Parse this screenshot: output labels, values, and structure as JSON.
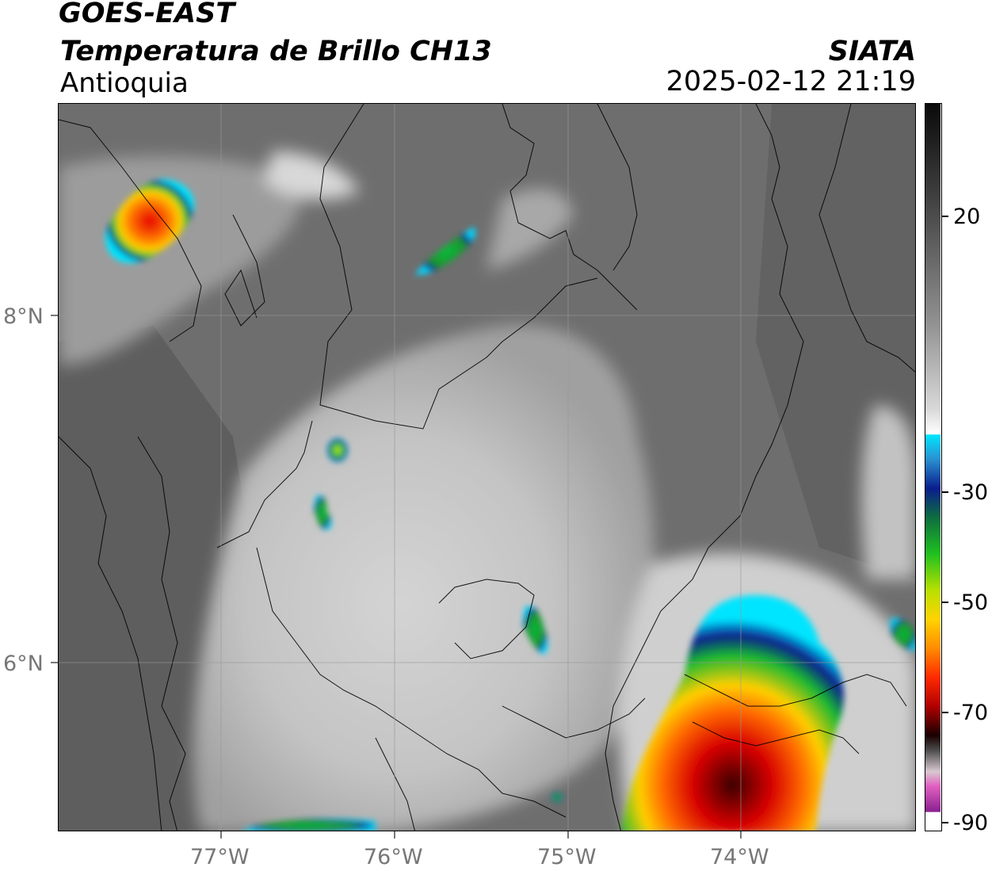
{
  "header": {
    "satellite": "GOES-EAST",
    "product": "Temperatura de Brillo CH13",
    "region": "Antioquia",
    "organization": "SIATA",
    "datetime": "2025-02-12 21:19"
  },
  "map": {
    "lat_labels": [
      "8°N",
      "6°N"
    ],
    "lon_labels": [
      "77°W",
      "76°W",
      "75°W",
      "74°W"
    ],
    "gridlines": true
  },
  "colorbar": {
    "ticks": [
      "20",
      "-30",
      "-50",
      "-70",
      "-90"
    ],
    "colors": {
      "warm": "#1a1a1a",
      "mid": "#bfbfbf",
      "cold_cyan": "#00e5ff",
      "cold_blue": "#0a1e8c",
      "cold_green": "#12b832",
      "cold_yellow": "#ffe600",
      "cold_orange": "#ff8c00",
      "cold_red": "#e60000",
      "cold_darkred": "#3a0000",
      "coldest_magenta": "#b050c0"
    }
  }
}
